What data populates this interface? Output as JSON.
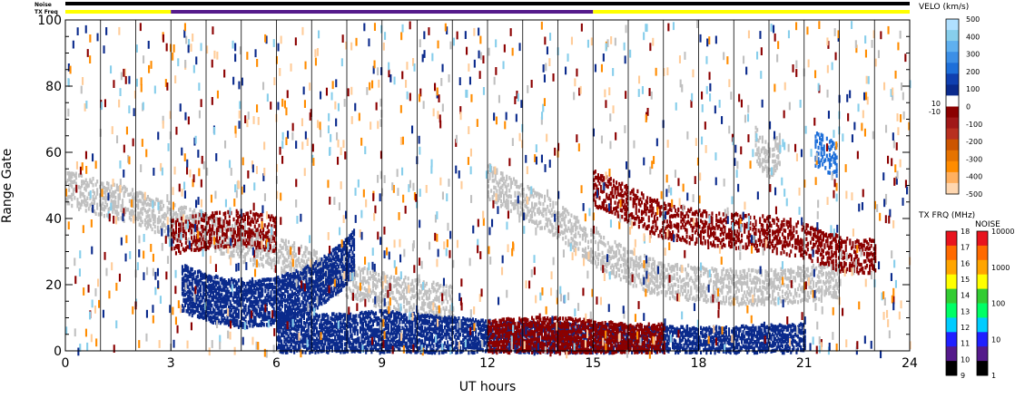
{
  "top_bars": {
    "noise_label": "Noise",
    "txfreq_label": "TX Freq",
    "noise_color": "#000000",
    "txfreq_segments": [
      {
        "start_h": 0,
        "end_h": 3,
        "color": "#ffff00"
      },
      {
        "start_h": 3,
        "end_h": 15,
        "color": "#551a8b"
      },
      {
        "start_h": 15,
        "end_h": 24,
        "color": "#ffff00"
      }
    ]
  },
  "chart_data": {
    "type": "heatmap",
    "xlabel": "UT hours",
    "ylabel": "Range Gate",
    "xlim": [
      0,
      24
    ],
    "ylim": [
      0,
      100
    ],
    "x_ticks": [
      "0",
      "3",
      "6",
      "9",
      "12",
      "15",
      "18",
      "21",
      "24"
    ],
    "y_ticks": [
      "0",
      "20",
      "40",
      "60",
      "80",
      "100"
    ],
    "grid_vertical_hours": [
      1,
      2,
      3,
      4,
      5,
      6,
      7,
      8,
      9,
      10,
      11,
      12,
      13,
      14,
      15,
      16,
      17,
      18,
      19,
      20,
      21,
      22,
      23
    ],
    "colors": {
      "ground_scatter": "#c0c0c0",
      "positive_dark": "#0a2a8c",
      "negative_dark": "#8b0000",
      "mid_blue": "#1e6fd9",
      "light_blue": "#87ceeb",
      "orange": "#ff8c00",
      "peach": "#ffcc99"
    },
    "features": [
      {
        "name": "ground scatter band",
        "color": "ground_scatter",
        "points": [
          [
            0,
            50
          ],
          [
            1,
            47
          ],
          [
            2,
            44
          ],
          [
            3,
            40
          ],
          [
            4,
            37
          ],
          [
            5,
            33
          ],
          [
            6,
            30
          ],
          [
            7,
            26
          ],
          [
            8,
            22
          ],
          [
            9,
            19
          ],
          [
            10,
            17
          ],
          [
            11,
            15
          ]
        ]
      },
      {
        "name": "blue arc",
        "color": "positive_dark",
        "points": [
          [
            3.3,
            20
          ],
          [
            4,
            17
          ],
          [
            5,
            15
          ],
          [
            6,
            16
          ],
          [
            7,
            20
          ],
          [
            7.8,
            26
          ],
          [
            8.2,
            31
          ]
        ]
      },
      {
        "name": "low range blue",
        "color": "positive_dark",
        "points": [
          [
            6,
            6
          ],
          [
            7,
            5
          ],
          [
            8,
            5
          ],
          [
            9,
            6
          ],
          [
            10,
            5
          ],
          [
            11,
            4
          ],
          [
            12,
            3
          ],
          [
            15,
            2
          ],
          [
            18,
            1
          ],
          [
            21,
            2
          ]
        ]
      },
      {
        "name": "low range red",
        "color": "negative_dark",
        "points": [
          [
            12,
            3
          ],
          [
            13,
            4
          ],
          [
            14,
            4
          ],
          [
            15,
            3
          ],
          [
            16,
            2
          ],
          [
            17,
            2
          ]
        ]
      },
      {
        "name": "morning red",
        "color": "negative_dark",
        "points": [
          [
            3,
            35
          ],
          [
            4,
            37
          ],
          [
            5,
            38
          ],
          [
            6,
            36
          ]
        ]
      },
      {
        "name": "evening grey",
        "color": "ground_scatter",
        "points": [
          [
            12,
            52
          ],
          [
            13,
            46
          ],
          [
            14,
            40
          ],
          [
            15,
            32
          ],
          [
            16,
            26
          ],
          [
            17,
            22
          ],
          [
            18,
            21
          ],
          [
            19,
            20
          ],
          [
            20,
            20
          ],
          [
            21,
            21
          ],
          [
            22,
            22
          ]
        ]
      },
      {
        "name": "evening upper",
        "color": "negative_dark",
        "points": [
          [
            15,
            50
          ],
          [
            16,
            45
          ],
          [
            17,
            40
          ],
          [
            18,
            38
          ],
          [
            19,
            37
          ],
          [
            20,
            36
          ],
          [
            21,
            34
          ],
          [
            22,
            30
          ],
          [
            23,
            29
          ]
        ]
      },
      {
        "name": "blue patch",
        "color": "mid_blue",
        "points": [
          [
            21.3,
            62
          ],
          [
            21.6,
            60
          ],
          [
            22,
            58
          ],
          [
            21.9,
            63
          ]
        ]
      },
      {
        "name": "grey cusp",
        "color": "ground_scatter",
        "points": [
          [
            19.6,
            63
          ],
          [
            19.8,
            60
          ],
          [
            20,
            58
          ],
          [
            20.3,
            62
          ]
        ]
      }
    ]
  },
  "colorbar_velocity": {
    "title": "VELO (km/s)",
    "ticks": [
      "500",
      "400",
      "300",
      "200",
      "100",
      "0",
      "-100",
      "-200",
      "-300",
      "-400",
      "-500"
    ],
    "side_ticks": [
      "10",
      "-10"
    ],
    "colors": [
      "#b0e0ff",
      "#87ceeb",
      "#5fb0ef",
      "#3c8fe6",
      "#1e6fd9",
      "#1040b0",
      "#0a2a8c",
      "#ffffff",
      "#8b0000",
      "#a01818",
      "#b83020",
      "#cc5500",
      "#e67300",
      "#ff8c00",
      "#ffb060",
      "#ffd7b0"
    ]
  },
  "colorbar_txfreq": {
    "title": "TX FRQ (MHz)",
    "ticks": [
      "18",
      "17",
      "16",
      "15",
      "14",
      "13",
      "12",
      "11",
      "10",
      "9"
    ],
    "colors": [
      "#e8141e",
      "#ff6a00",
      "#ffa500",
      "#ffff00",
      "#33cc33",
      "#00ff66",
      "#00ccff",
      "#2020ff",
      "#551a8b",
      "#000000"
    ]
  },
  "colorbar_noise": {
    "title": "NOISE",
    "ticks": [
      "10000",
      "1000",
      "100",
      "10",
      "1"
    ],
    "colors": [
      "#e8141e",
      "#ff6a00",
      "#ffa500",
      "#ffff00",
      "#33cc33",
      "#00ff66",
      "#00ccff",
      "#2020ff",
      "#551a8b",
      "#000000"
    ]
  }
}
